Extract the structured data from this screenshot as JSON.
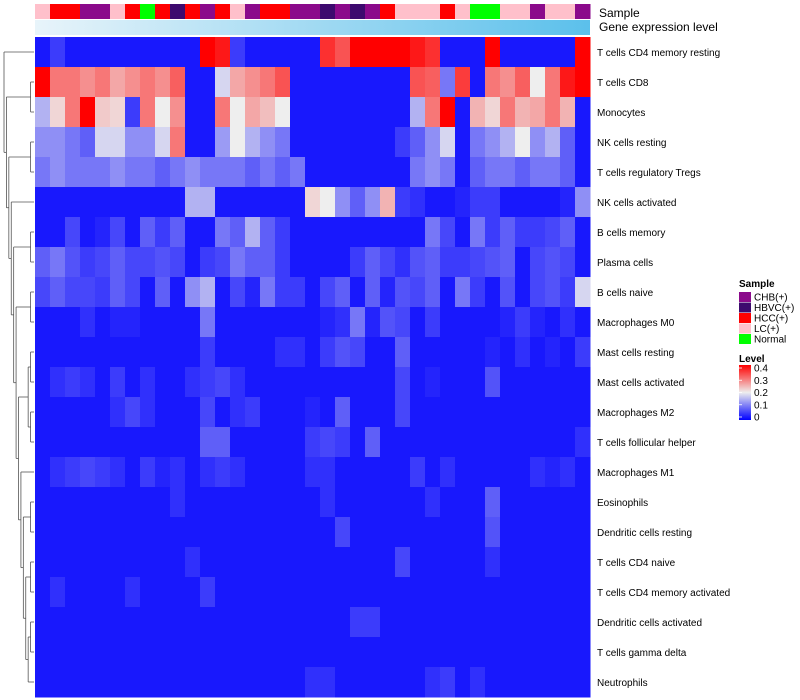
{
  "chart_data": {
    "type": "heatmap",
    "title": "",
    "annotations": [
      {
        "name": "Sample",
        "label": "Sample"
      },
      {
        "name": "Gene expression level",
        "label": "Gene expression level"
      }
    ],
    "sample_groups": [
      "LC(+)",
      "HCC(+)",
      "HCC(+)",
      "CHB(+)",
      "CHB(+)",
      "LC(+)",
      "HCC(+)",
      "Normal",
      "HCC(+)",
      "HBVC(+)",
      "HCC(+)",
      "CHB(+)",
      "HCC(+)",
      "LC(+)",
      "CHB(+)",
      "HCC(+)",
      "HCC(+)",
      "CHB(+)",
      "CHB(+)",
      "HBVC(+)",
      "CHB(+)",
      "HBVC(+)",
      "CHB(+)",
      "HCC(+)",
      "LC(+)",
      "LC(+)",
      "LC(+)",
      "HCC(+)",
      "LC(+)",
      "Normal",
      "Normal",
      "LC(+)",
      "LC(+)",
      "CHB(+)",
      "LC(+)",
      "LC(+)",
      "CHB(+)"
    ],
    "rows": [
      "T cells CD4 memory resting",
      "T cells CD8",
      "Monocytes",
      "NK cells resting",
      "T cells regulatory  Tregs",
      "NK cells activated",
      "B cells memory",
      "Plasma cells",
      "B cells naive",
      "Macrophages M0",
      "Mast cells resting",
      "Mast cells activated",
      "Macrophages M2",
      "T cells follicular helper",
      "Macrophages M1",
      "Eosinophils",
      "Dendritic cells resting",
      "T cells CD4 naive",
      "T cells CD4 memory activated",
      "Dendritic cells activated",
      "T cells gamma delta",
      "Neutrophils"
    ],
    "values": [
      [
        0.02,
        0.05,
        0.02,
        0.02,
        0.02,
        0.02,
        0.02,
        0.02,
        0.02,
        0.02,
        0.02,
        0.4,
        0.38,
        0.05,
        0.02,
        0.02,
        0.02,
        0.02,
        0.02,
        0.36,
        0.33,
        0.4,
        0.4,
        0.4,
        0.4,
        0.38,
        0.36,
        0.02,
        0.02,
        0.02,
        0.4,
        0.02,
        0.02,
        0.02,
        0.02,
        0.02,
        0.4
      ],
      [
        0.4,
        0.3,
        0.3,
        0.28,
        0.3,
        0.26,
        0.28,
        0.3,
        0.28,
        0.32,
        0.02,
        0.02,
        0.18,
        0.26,
        0.28,
        0.3,
        0.33,
        0.02,
        0.02,
        0.02,
        0.02,
        0.02,
        0.02,
        0.02,
        0.02,
        0.33,
        0.32,
        0.1,
        0.35,
        0.02,
        0.3,
        0.28,
        0.32,
        0.2,
        0.3,
        0.38,
        0.4
      ],
      [
        0.15,
        0.22,
        0.3,
        0.4,
        0.23,
        0.22,
        0.05,
        0.3,
        0.2,
        0.28,
        0.02,
        0.02,
        0.3,
        0.2,
        0.26,
        0.24,
        0.2,
        0.02,
        0.02,
        0.02,
        0.02,
        0.02,
        0.02,
        0.02,
        0.02,
        0.15,
        0.3,
        0.4,
        0.02,
        0.25,
        0.22,
        0.3,
        0.25,
        0.26,
        0.3,
        0.25,
        0.02
      ],
      [
        0.12,
        0.12,
        0.1,
        0.08,
        0.18,
        0.18,
        0.12,
        0.12,
        0.18,
        0.3,
        0.02,
        0.02,
        0.13,
        0.2,
        0.15,
        0.12,
        0.1,
        0.02,
        0.02,
        0.02,
        0.02,
        0.02,
        0.02,
        0.02,
        0.05,
        0.08,
        0.12,
        0.18,
        0.02,
        0.1,
        0.12,
        0.15,
        0.2,
        0.12,
        0.15,
        0.08,
        0.02
      ],
      [
        0.1,
        0.12,
        0.1,
        0.1,
        0.1,
        0.12,
        0.1,
        0.1,
        0.08,
        0.1,
        0.12,
        0.1,
        0.1,
        0.1,
        0.08,
        0.1,
        0.08,
        0.1,
        0.02,
        0.02,
        0.02,
        0.02,
        0.02,
        0.02,
        0.02,
        0.1,
        0.12,
        0.1,
        0.02,
        0.08,
        0.1,
        0.1,
        0.08,
        0.1,
        0.1,
        0.08,
        0.02
      ],
      [
        0.02,
        0.02,
        0.02,
        0.02,
        0.02,
        0.02,
        0.02,
        0.02,
        0.02,
        0.02,
        0.15,
        0.15,
        0.02,
        0.02,
        0.02,
        0.02,
        0.02,
        0.02,
        0.22,
        0.2,
        0.12,
        0.08,
        0.12,
        0.25,
        0.05,
        0.04,
        0.02,
        0.02,
        0.03,
        0.05,
        0.05,
        0.02,
        0.02,
        0.02,
        0.02,
        0.03,
        0.12
      ],
      [
        0.02,
        0.02,
        0.06,
        0.02,
        0.03,
        0.06,
        0.02,
        0.08,
        0.05,
        0.08,
        0.02,
        0.02,
        0.1,
        0.08,
        0.15,
        0.08,
        0.05,
        0.02,
        0.02,
        0.02,
        0.02,
        0.02,
        0.02,
        0.02,
        0.02,
        0.02,
        0.1,
        0.06,
        0.02,
        0.1,
        0.05,
        0.08,
        0.05,
        0.05,
        0.06,
        0.08,
        0.02
      ],
      [
        0.08,
        0.1,
        0.07,
        0.05,
        0.06,
        0.08,
        0.06,
        0.06,
        0.07,
        0.06,
        0.02,
        0.05,
        0.06,
        0.1,
        0.08,
        0.08,
        0.05,
        0.02,
        0.02,
        0.02,
        0.02,
        0.05,
        0.08,
        0.06,
        0.04,
        0.07,
        0.08,
        0.05,
        0.05,
        0.06,
        0.07,
        0.08,
        0.02,
        0.06,
        0.07,
        0.06,
        0.02
      ],
      [
        0.06,
        0.08,
        0.06,
        0.06,
        0.05,
        0.08,
        0.06,
        0.02,
        0.08,
        0.02,
        0.12,
        0.15,
        0.02,
        0.06,
        0.03,
        0.1,
        0.05,
        0.05,
        0.02,
        0.06,
        0.08,
        0.02,
        0.08,
        0.03,
        0.07,
        0.06,
        0.08,
        0.02,
        0.1,
        0.05,
        0.02,
        0.07,
        0.02,
        0.06,
        0.07,
        0.05,
        0.18
      ],
      [
        0.02,
        0.02,
        0.02,
        0.04,
        0.02,
        0.03,
        0.03,
        0.02,
        0.02,
        0.02,
        0.02,
        0.1,
        0.02,
        0.02,
        0.02,
        0.02,
        0.02,
        0.02,
        0.02,
        0.03,
        0.04,
        0.1,
        0.03,
        0.07,
        0.06,
        0.02,
        0.05,
        0.02,
        0.02,
        0.02,
        0.02,
        0.03,
        0.05,
        0.03,
        0.02,
        0.04,
        0.02
      ],
      [
        0.02,
        0.02,
        0.02,
        0.02,
        0.02,
        0.02,
        0.02,
        0.02,
        0.02,
        0.02,
        0.02,
        0.05,
        0.02,
        0.02,
        0.02,
        0.02,
        0.04,
        0.04,
        0.02,
        0.05,
        0.07,
        0.06,
        0.02,
        0.02,
        0.08,
        0.02,
        0.02,
        0.02,
        0.02,
        0.02,
        0.03,
        0.02,
        0.04,
        0.02,
        0.03,
        0.02,
        0.05
      ],
      [
        0.02,
        0.04,
        0.05,
        0.04,
        0.02,
        0.05,
        0.02,
        0.04,
        0.02,
        0.02,
        0.04,
        0.05,
        0.06,
        0.04,
        0.02,
        0.02,
        0.02,
        0.02,
        0.02,
        0.02,
        0.02,
        0.02,
        0.02,
        0.02,
        0.06,
        0.02,
        0.03,
        0.02,
        0.02,
        0.02,
        0.07,
        0.02,
        0.02,
        0.02,
        0.02,
        0.02,
        0.02
      ],
      [
        0.02,
        0.02,
        0.02,
        0.02,
        0.02,
        0.04,
        0.06,
        0.04,
        0.02,
        0.02,
        0.02,
        0.06,
        0.02,
        0.04,
        0.05,
        0.02,
        0.02,
        0.02,
        0.03,
        0.02,
        0.08,
        0.02,
        0.02,
        0.02,
        0.06,
        0.02,
        0.02,
        0.02,
        0.02,
        0.02,
        0.02,
        0.02,
        0.02,
        0.02,
        0.02,
        0.02,
        0.02
      ],
      [
        0.02,
        0.02,
        0.02,
        0.02,
        0.02,
        0.02,
        0.02,
        0.02,
        0.02,
        0.02,
        0.02,
        0.08,
        0.08,
        0.02,
        0.02,
        0.02,
        0.02,
        0.02,
        0.05,
        0.06,
        0.05,
        0.02,
        0.08,
        0.02,
        0.02,
        0.02,
        0.02,
        0.02,
        0.02,
        0.02,
        0.02,
        0.02,
        0.02,
        0.02,
        0.02,
        0.02,
        0.04
      ],
      [
        0.02,
        0.04,
        0.05,
        0.06,
        0.05,
        0.04,
        0.02,
        0.05,
        0.03,
        0.04,
        0.02,
        0.04,
        0.05,
        0.04,
        0.02,
        0.02,
        0.02,
        0.02,
        0.04,
        0.04,
        0.02,
        0.02,
        0.02,
        0.02,
        0.02,
        0.05,
        0.02,
        0.04,
        0.02,
        0.02,
        0.02,
        0.02,
        0.02,
        0.04,
        0.03,
        0.04,
        0.02
      ],
      [
        0.02,
        0.02,
        0.02,
        0.02,
        0.02,
        0.02,
        0.02,
        0.02,
        0.02,
        0.04,
        0.02,
        0.02,
        0.02,
        0.02,
        0.02,
        0.02,
        0.02,
        0.02,
        0.02,
        0.04,
        0.02,
        0.02,
        0.02,
        0.02,
        0.02,
        0.02,
        0.04,
        0.02,
        0.02,
        0.02,
        0.08,
        0.02,
        0.02,
        0.02,
        0.02,
        0.02,
        0.02
      ],
      [
        0.02,
        0.02,
        0.02,
        0.02,
        0.02,
        0.02,
        0.02,
        0.02,
        0.02,
        0.02,
        0.02,
        0.02,
        0.02,
        0.02,
        0.02,
        0.02,
        0.02,
        0.02,
        0.02,
        0.02,
        0.06,
        0.02,
        0.02,
        0.02,
        0.02,
        0.02,
        0.02,
        0.02,
        0.02,
        0.02,
        0.07,
        0.02,
        0.02,
        0.02,
        0.02,
        0.02,
        0.02
      ],
      [
        0.02,
        0.02,
        0.02,
        0.02,
        0.02,
        0.02,
        0.02,
        0.02,
        0.02,
        0.02,
        0.04,
        0.02,
        0.02,
        0.02,
        0.02,
        0.02,
        0.02,
        0.02,
        0.02,
        0.02,
        0.02,
        0.02,
        0.02,
        0.02,
        0.06,
        0.02,
        0.02,
        0.02,
        0.02,
        0.02,
        0.04,
        0.02,
        0.02,
        0.02,
        0.02,
        0.02,
        0.02
      ],
      [
        0.02,
        0.04,
        0.02,
        0.02,
        0.02,
        0.02,
        0.04,
        0.02,
        0.02,
        0.02,
        0.02,
        0.05,
        0.02,
        0.02,
        0.02,
        0.02,
        0.02,
        0.02,
        0.02,
        0.02,
        0.02,
        0.02,
        0.02,
        0.02,
        0.02,
        0.02,
        0.02,
        0.02,
        0.02,
        0.02,
        0.02,
        0.02,
        0.02,
        0.02,
        0.02,
        0.02,
        0.02
      ],
      [
        0.02,
        0.02,
        0.02,
        0.02,
        0.02,
        0.02,
        0.02,
        0.02,
        0.02,
        0.02,
        0.02,
        0.02,
        0.02,
        0.02,
        0.02,
        0.02,
        0.02,
        0.02,
        0.02,
        0.02,
        0.02,
        0.05,
        0.05,
        0.02,
        0.02,
        0.02,
        0.02,
        0.02,
        0.02,
        0.02,
        0.02,
        0.02,
        0.02,
        0.02,
        0.02,
        0.02,
        0.02
      ],
      [
        0.02,
        0.02,
        0.02,
        0.02,
        0.02,
        0.02,
        0.02,
        0.02,
        0.02,
        0.02,
        0.02,
        0.02,
        0.02,
        0.02,
        0.02,
        0.02,
        0.02,
        0.02,
        0.02,
        0.02,
        0.02,
        0.02,
        0.02,
        0.02,
        0.02,
        0.02,
        0.02,
        0.02,
        0.02,
        0.02,
        0.02,
        0.02,
        0.02,
        0.02,
        0.02,
        0.02,
        0.02
      ],
      [
        0.02,
        0.02,
        0.02,
        0.02,
        0.02,
        0.02,
        0.02,
        0.02,
        0.02,
        0.02,
        0.02,
        0.02,
        0.02,
        0.02,
        0.02,
        0.02,
        0.02,
        0.02,
        0.04,
        0.04,
        0.02,
        0.02,
        0.02,
        0.02,
        0.02,
        0.02,
        0.04,
        0.05,
        0.02,
        0.04,
        0.02,
        0.02,
        0.02,
        0.02,
        0.02,
        0.02,
        0.02
      ]
    ],
    "color_scale": {
      "min": 0,
      "mid": 0.2,
      "max": 0.4,
      "low": "#0000ff",
      "middle": "#eeeeee",
      "high": "#ff0000"
    },
    "legend": {
      "sample_title": "Sample",
      "sample_entries": [
        {
          "label": "CHB(+)",
          "color": "#8b0a8b"
        },
        {
          "label": "HBVC(+)",
          "color": "#3d0a6e"
        },
        {
          "label": "HCC(+)",
          "color": "#ff0000"
        },
        {
          "label": "LC(+)",
          "color": "#ffc0cb"
        },
        {
          "label": "Normal",
          "color": "#00ff00"
        }
      ],
      "level_title": "Level",
      "level_ticks": [
        {
          "value": 0.4,
          "label": "0.4"
        },
        {
          "value": 0.3,
          "label": "0.3"
        },
        {
          "value": 0.2,
          "label": "0.2"
        },
        {
          "value": 0.1,
          "label": "0.1"
        },
        {
          "value": 0,
          "label": "0"
        }
      ],
      "position": "right"
    },
    "expression_bar_colors": [
      "#e8f4fa",
      "#5bc0eb"
    ],
    "dendrogram": "rows-left"
  }
}
